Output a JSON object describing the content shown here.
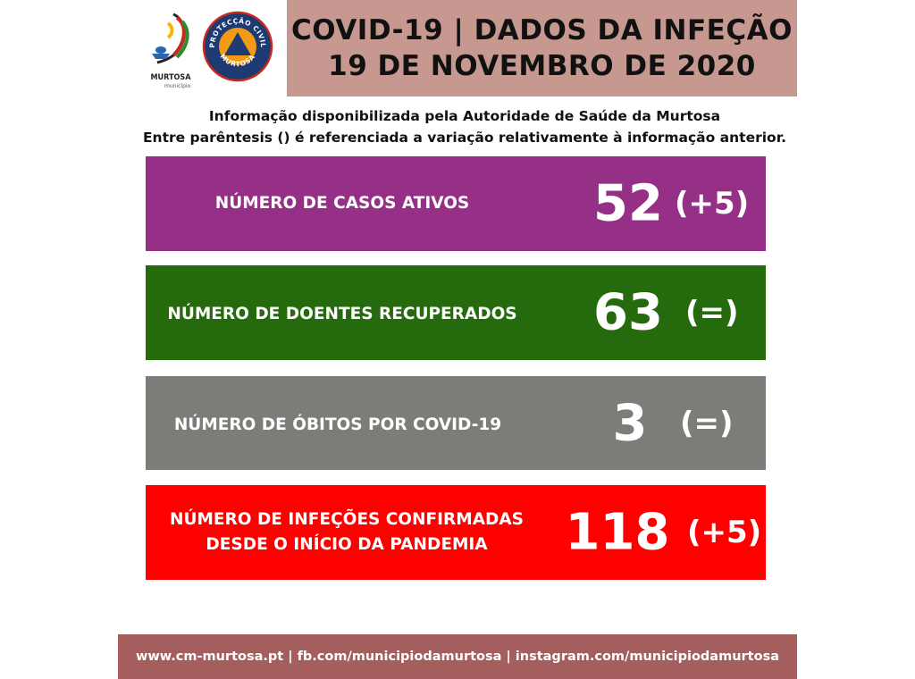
{
  "logos": {
    "municipality_name": "MURTOSA",
    "municipality_sub": "município",
    "civil_protection_top": "PROTECÇÃO CIVIL",
    "civil_protection_bottom": "MURTOSA"
  },
  "header": {
    "title_line1": "COVID-19 | DADOS DA INFEÇÃO",
    "title_line2": "19 DE NOVEMBRO DE 2020"
  },
  "info": {
    "line1": "Informação disponibilizada pela Autoridade de Saúde da Murtosa",
    "line2": "Entre parêntesis () é referenciada a variação relativamente à informação anterior."
  },
  "stats": [
    {
      "label": "NÚMERO DE CASOS ATIVOS",
      "label2": "",
      "value": "52",
      "change": "(+5)",
      "color": "#962f86"
    },
    {
      "label": "NÚMERO DE DOENTES RECUPERADOS",
      "label2": "",
      "value": "63",
      "change": "(=)",
      "color": "#256b0d"
    },
    {
      "label": "NÚMERO DE ÓBITOS POR COVID-19",
      "label2": "",
      "value": "3",
      "change": "(=)",
      "color": "#7a7d78"
    },
    {
      "label": "NÚMERO DE INFEÇÕES CONFIRMADAS",
      "label2": "DESDE O INÍCIO DA PANDEMIA",
      "value": "118",
      "change": "(+5)",
      "color": "#fe0000"
    }
  ],
  "footer": {
    "text": "www.cm-murtosa.pt  | fb.com/municipiodamurtosa | instagram.com/municipiodamurtosa"
  },
  "colors": {
    "title_bg": "#c69890",
    "footer_bg": "#a55e5e"
  }
}
